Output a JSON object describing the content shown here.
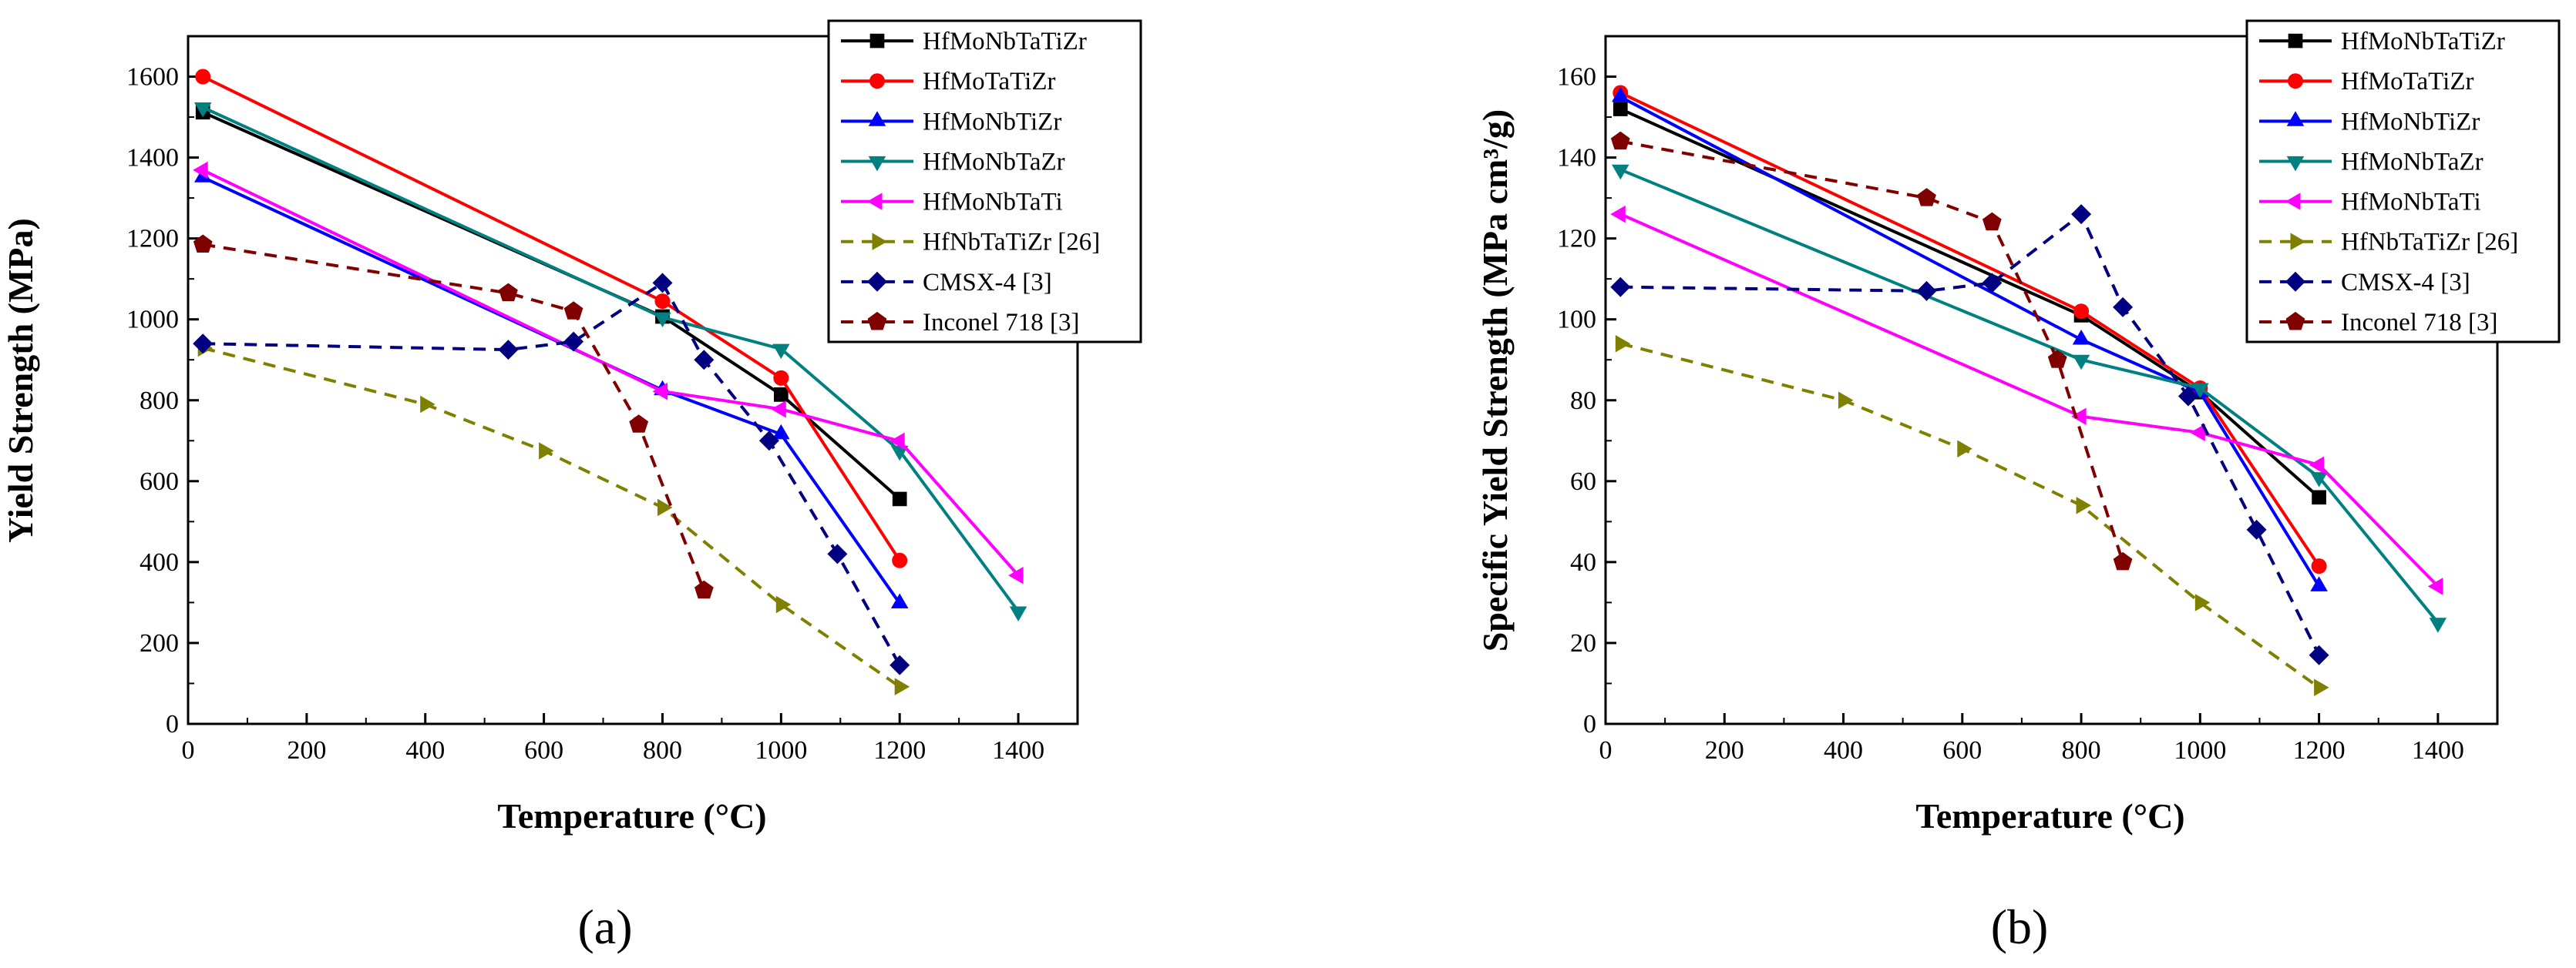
{
  "chart_data": [
    {
      "panel": "(a)",
      "type": "line",
      "title": "",
      "xlabel": "Temperature (°C)",
      "ylabel": "Yield Strength (MPa)",
      "xlim": [
        0,
        1500
      ],
      "ylim": [
        0,
        1700
      ],
      "xticks": [
        0,
        200,
        400,
        600,
        800,
        1000,
        1200,
        1400
      ],
      "yticks": [
        0,
        200,
        400,
        600,
        800,
        1000,
        1200,
        1400,
        1600
      ],
      "legend_position": "top-right",
      "series": [
        {
          "name": "HfMoNbTaTiZr",
          "color": "#000000",
          "marker": "square",
          "dash": "solid",
          "points": [
            [
              25,
              1512
            ],
            [
              800,
              1007
            ],
            [
              1000,
              814
            ],
            [
              1200,
              556
            ]
          ]
        },
        {
          "name": "HfMoTaTiZr",
          "color": "#ff0000",
          "marker": "circle",
          "dash": "solid",
          "points": [
            [
              25,
              1600
            ],
            [
              800,
              1045
            ],
            [
              1000,
              855
            ],
            [
              1200,
              404
            ]
          ]
        },
        {
          "name": "HfMoNbTiZr",
          "color": "#0000ff",
          "marker": "triangle-up",
          "dash": "solid",
          "points": [
            [
              25,
              1351
            ],
            [
              800,
              825
            ],
            [
              1000,
              716
            ],
            [
              1200,
              298
            ]
          ]
        },
        {
          "name": "HfMoNbTaZr",
          "color": "#008080",
          "marker": "triangle-down",
          "dash": "solid",
          "points": [
            [
              25,
              1524
            ],
            [
              800,
              1005
            ],
            [
              1000,
              927
            ],
            [
              1200,
              675
            ],
            [
              1400,
              278
            ]
          ]
        },
        {
          "name": "HfMoNbTaTi",
          "color": "#ff00ff",
          "marker": "triangle-left",
          "dash": "solid",
          "points": [
            [
              25,
              1369
            ],
            [
              800,
              822
            ],
            [
              1000,
              778
            ],
            [
              1200,
              699
            ],
            [
              1400,
              367
            ]
          ]
        },
        {
          "name": "HfNbTaTiZr [26]",
          "color": "#808000",
          "marker": "triangle-right",
          "dash": "dashed",
          "points": [
            [
              25,
              929
            ],
            [
              400,
              790
            ],
            [
              600,
              675
            ],
            [
              800,
              535
            ],
            [
              1000,
              295
            ],
            [
              1200,
              92
            ]
          ]
        },
        {
          "name": "CMSX-4 [3]",
          "color": "#000080",
          "marker": "diamond",
          "dash": "dashed",
          "points": [
            [
              25,
              940
            ],
            [
              540,
              925
            ],
            [
              650,
              945
            ],
            [
              800,
              1090
            ],
            [
              870,
              900
            ],
            [
              980,
              700
            ],
            [
              1095,
              420
            ],
            [
              1200,
              145
            ]
          ]
        },
        {
          "name": "Inconel 718 [3]",
          "color": "#800000",
          "marker": "pentagon",
          "dash": "dashed",
          "points": [
            [
              25,
              1185
            ],
            [
              540,
              1065
            ],
            [
              650,
              1020
            ],
            [
              760,
              740
            ],
            [
              870,
              330
            ]
          ]
        }
      ]
    },
    {
      "panel": "(b)",
      "type": "line",
      "title": "",
      "xlabel": "Temperature (°C)",
      "ylabel": "Specific Yield Strength (MPa cm³/g)",
      "xlim": [
        0,
        1500
      ],
      "ylim": [
        0,
        170
      ],
      "xticks": [
        0,
        200,
        400,
        600,
        800,
        1000,
        1200,
        1400
      ],
      "yticks": [
        0,
        20,
        40,
        60,
        80,
        100,
        120,
        140,
        160
      ],
      "legend_position": "top-right",
      "series": [
        {
          "name": "HfMoNbTaTiZr",
          "color": "#000000",
          "marker": "square",
          "dash": "solid",
          "points": [
            [
              25,
              152
            ],
            [
              800,
              101
            ],
            [
              1000,
              82
            ],
            [
              1200,
              56
            ]
          ]
        },
        {
          "name": "HfMoTaTiZr",
          "color": "#ff0000",
          "marker": "circle",
          "dash": "solid",
          "points": [
            [
              25,
              156
            ],
            [
              800,
              102
            ],
            [
              1000,
              83
            ],
            [
              1200,
              39
            ]
          ]
        },
        {
          "name": "HfMoNbTiZr",
          "color": "#0000ff",
          "marker": "triangle-up",
          "dash": "solid",
          "points": [
            [
              25,
              155
            ],
            [
              800,
              95
            ],
            [
              1000,
              82
            ],
            [
              1200,
              34
            ]
          ]
        },
        {
          "name": "HfMoNbTaZr",
          "color": "#008080",
          "marker": "triangle-down",
          "dash": "solid",
          "points": [
            [
              25,
              137
            ],
            [
              800,
              90
            ],
            [
              1000,
              83
            ],
            [
              1200,
              61
            ],
            [
              1400,
              25
            ]
          ]
        },
        {
          "name": "HfMoNbTaTi",
          "color": "#ff00ff",
          "marker": "triangle-left",
          "dash": "solid",
          "points": [
            [
              25,
              126
            ],
            [
              800,
              76
            ],
            [
              1000,
              72
            ],
            [
              1200,
              64
            ],
            [
              1400,
              34
            ]
          ]
        },
        {
          "name": "HfNbTaTiZr [26]",
          "color": "#808000",
          "marker": "triangle-right",
          "dash": "dashed",
          "points": [
            [
              25,
              94
            ],
            [
              400,
              80
            ],
            [
              600,
              68
            ],
            [
              800,
              54
            ],
            [
              1000,
              30
            ],
            [
              1200,
              9
            ]
          ]
        },
        {
          "name": "CMSX-4 [3]",
          "color": "#000080",
          "marker": "diamond",
          "dash": "dashed",
          "points": [
            [
              25,
              108
            ],
            [
              540,
              107
            ],
            [
              650,
              109
            ],
            [
              800,
              126
            ],
            [
              870,
              103
            ],
            [
              980,
              81
            ],
            [
              1095,
              48
            ],
            [
              1200,
              17
            ]
          ]
        },
        {
          "name": "Inconel 718 [3]",
          "color": "#800000",
          "marker": "pentagon",
          "dash": "dashed",
          "points": [
            [
              25,
              144
            ],
            [
              540,
              130
            ],
            [
              650,
              124
            ],
            [
              760,
              90
            ],
            [
              870,
              40
            ]
          ]
        }
      ]
    }
  ]
}
